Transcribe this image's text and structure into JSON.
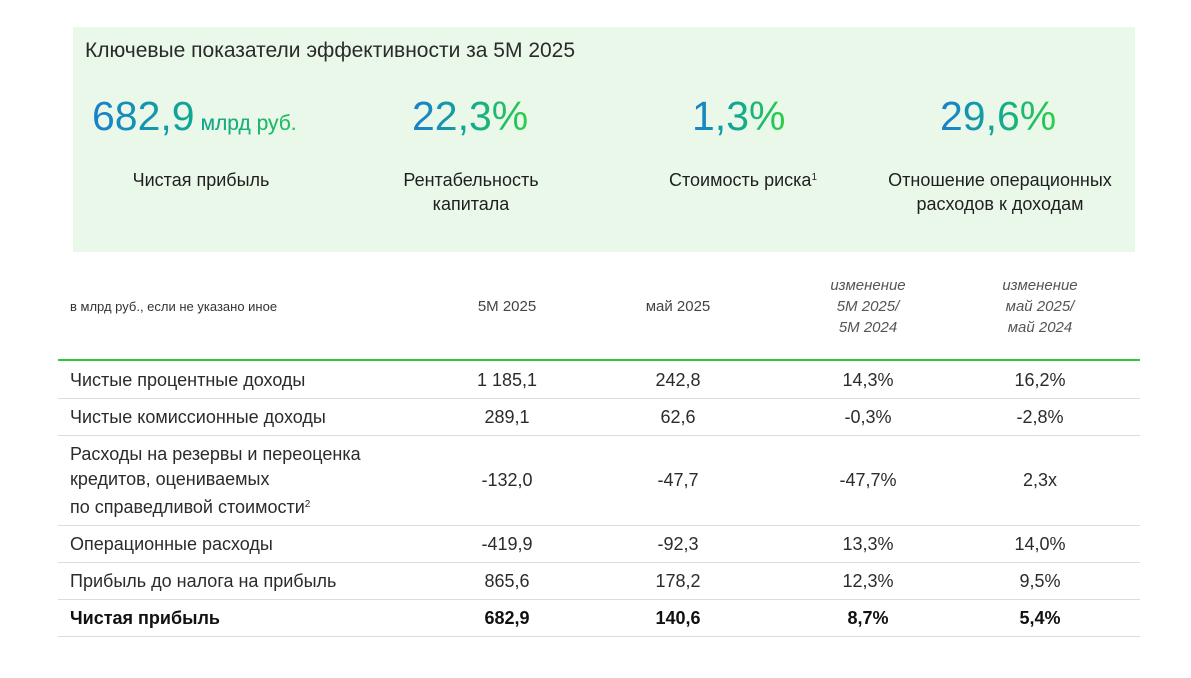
{
  "kpi": {
    "title": "Ключевые показатели эффективности за 5М 2025",
    "items": [
      {
        "value": "682,9",
        "unit": "млрд руб.",
        "label": "Чистая прибыль",
        "sup": ""
      },
      {
        "value": "22,3%",
        "unit": "",
        "label_line1": "Рентабельность",
        "label_line2": "капитала"
      },
      {
        "value": "1,3%",
        "unit": "",
        "label": "Стоимость риска",
        "sup": "1"
      },
      {
        "value": "29,6%",
        "unit": "",
        "label_line1": "Отношение операционных",
        "label_line2": "расходов к доходам"
      }
    ],
    "gradient_colors": [
      "#1a7ecf",
      "#12a890",
      "#2dcd4a"
    ],
    "panel_color": "#eaf8ea"
  },
  "table": {
    "note": "в млрд руб., если не указано иное",
    "columns": [
      {
        "line1": "5М 2025"
      },
      {
        "line1": "май 2025"
      },
      {
        "line1": "изменение",
        "line2": "5М 2025/",
        "line3": "5М 2024"
      },
      {
        "line1": "изменение",
        "line2": "май 2025/",
        "line3": "май 2024"
      }
    ],
    "rows": [
      {
        "name": "Чистые процентные доходы",
        "c1": "1 185,1",
        "c2": "242,8",
        "c3": "14,3%",
        "c4": "16,2%"
      },
      {
        "name": "Чистые комиссионные доходы",
        "c1": "289,1",
        "c2": "62,6",
        "c3": "-0,3%",
        "c4": "-2,8%"
      },
      {
        "name_line1": "Расходы на резервы и переоценка",
        "name_line2": "кредитов, оцениваемых",
        "name_line3": "по справедливой стоимости",
        "sup": "2",
        "c1": "-132,0",
        "c2": "-47,7",
        "c3": "-47,7%",
        "c4": "2,3x"
      },
      {
        "name": "Операционные расходы",
        "c1": "-419,9",
        "c2": "-92,3",
        "c3": "13,3%",
        "c4": "14,0%"
      },
      {
        "name": "Прибыль до налога на прибыль",
        "c1": "865,6",
        "c2": "178,2",
        "c3": "12,3%",
        "c4": "9,5%"
      },
      {
        "name": "Чистая прибыль",
        "c1": "682,9",
        "c2": "140,6",
        "c3": "8,7%",
        "c4": "5,4%"
      }
    ],
    "accent_color": "#2ec83c"
  }
}
